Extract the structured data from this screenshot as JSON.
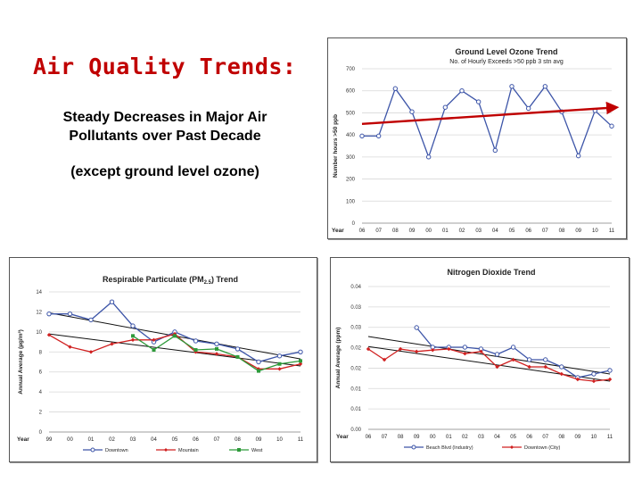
{
  "slide": {
    "title": "Air Quality Trends:",
    "subtitle_line1": "Steady Decreases in Major Air",
    "subtitle_line2": "Pollutants over Past Decade",
    "note": "(except ground level ozone)"
  },
  "chart_data": [
    {
      "type": "line",
      "title": "Ground Level Ozone Trend",
      "subtitle": "No. of Hourly Exceeds >50 ppb 3 stn avg",
      "ylabel": "Number hours >50 ppb",
      "xlabel": "Year",
      "categories": [
        "06",
        "07",
        "08",
        "09",
        "00",
        "01",
        "02",
        "03",
        "04",
        "05",
        "06",
        "07",
        "08",
        "09",
        "10",
        "11"
      ],
      "ylim": [
        0,
        700
      ],
      "yticks": [
        0,
        100,
        200,
        300,
        400,
        500,
        600,
        700
      ],
      "series": [
        {
          "values": [
            395,
            395,
            610,
            505,
            300,
            525,
            600,
            550,
            330,
            620,
            520,
            620,
            505,
            305,
            510,
            440
          ],
          "color": "#3d55a8"
        }
      ],
      "trend_arrow": {
        "start": 450,
        "end": 525,
        "color": "#c00000"
      },
      "grid": true
    },
    {
      "type": "line",
      "title": "Respirable Particulate (PM2.5) Trend",
      "title_main": "Respirable Particulate (PM",
      "title_sub": "2.5",
      "title_end": ") Trend",
      "ylabel": "Annual Average (µg/m³)",
      "xlabel": "Year",
      "categories": [
        "99",
        "00",
        "01",
        "02",
        "03",
        "04",
        "05",
        "06",
        "07",
        "08",
        "09",
        "10",
        "11"
      ],
      "ylim": [
        0,
        14
      ],
      "yticks": [
        0,
        2,
        4,
        6,
        8,
        10,
        12,
        14
      ],
      "series": [
        {
          "name": "Downtown",
          "color": "#3d55a8",
          "values": [
            11.8,
            11.8,
            11.2,
            13.0,
            10.6,
            9.0,
            10.0,
            9.1,
            8.8,
            8.3,
            7.0,
            7.6,
            8.0
          ]
        },
        {
          "name": "Mountain",
          "color": "#d02020",
          "values": [
            9.7,
            8.5,
            8.0,
            8.8,
            9.2,
            9.2,
            9.8,
            8.0,
            7.8,
            7.5,
            6.3,
            6.3,
            6.8
          ]
        },
        {
          "name": "West",
          "color": "#2e9a3a",
          "values": [
            null,
            null,
            null,
            null,
            9.6,
            8.2,
            9.6,
            8.2,
            8.3,
            7.5,
            6.1,
            6.8,
            7.1
          ]
        }
      ],
      "trend_lines": [
        {
          "start": 11.9,
          "end": 7.3
        },
        {
          "start": 9.8,
          "end": 6.6
        }
      ],
      "grid": true
    },
    {
      "type": "line",
      "title": "Nitrogen Dioxide Trend",
      "ylabel": "Annual Average (ppm)",
      "xlabel": "Year",
      "categories": [
        "06",
        "07",
        "08",
        "09",
        "00",
        "01",
        "02",
        "03",
        "04",
        "05",
        "06",
        "07",
        "08",
        "09",
        "10",
        "11"
      ],
      "ylim": [
        0,
        0.04
      ],
      "yticks": [
        "0.00",
        "0.01",
        "0.01",
        "0.02",
        "0.02",
        "0.03",
        "0.03",
        "0.04"
      ],
      "series": [
        {
          "name": "Beach Blvd (Industry)",
          "color": "#3d55a8",
          "values": [
            null,
            null,
            null,
            0.0285,
            0.023,
            0.023,
            0.023,
            0.0225,
            0.021,
            0.023,
            0.0195,
            0.0195,
            0.0175,
            0.0145,
            0.0155,
            0.0165
          ]
        },
        {
          "name": "Downtown (City)",
          "color": "#d02020",
          "values": [
            0.0225,
            0.0195,
            0.0225,
            0.0218,
            0.0222,
            0.0225,
            0.0212,
            0.0218,
            0.0175,
            0.0195,
            0.0175,
            0.0175,
            0.0155,
            0.014,
            0.0135,
            0.014
          ]
        }
      ],
      "trend_lines": [
        {
          "start": 0.026,
          "end": 0.0155
        },
        {
          "start": 0.0232,
          "end": 0.0135
        }
      ],
      "grid": true
    }
  ]
}
